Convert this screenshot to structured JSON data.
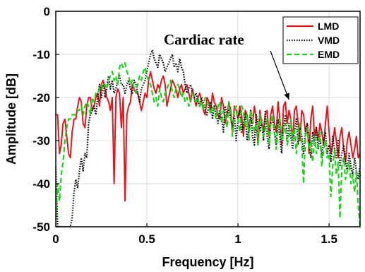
{
  "chart_data": {
    "type": "line",
    "xlabel": "Frequency [Hz]",
    "ylabel": "Amplitude [dB]",
    "xlim": [
      0,
      1.67
    ],
    "ylim": [
      -50,
      0
    ],
    "xticks": [
      {
        "value": 0,
        "label": "0"
      },
      {
        "value": 0.5,
        "label": "0.5"
      },
      {
        "value": 1,
        "label": "1"
      },
      {
        "value": 1.5,
        "label": "1.5"
      }
    ],
    "yticks": [
      {
        "value": 0,
        "label": "0"
      },
      {
        "value": -10,
        "label": "-10"
      },
      {
        "value": -20,
        "label": "-20"
      },
      {
        "value": -30,
        "label": "-30"
      },
      {
        "value": -40,
        "label": "-40"
      },
      {
        "value": -50,
        "label": "-50"
      }
    ],
    "grid": true,
    "legend_position": "top-right",
    "annotation": {
      "text": "Cardiac rate",
      "x": 1.28,
      "y": -20.5
    },
    "series": [
      {
        "name": "LMD",
        "color": "#e8141c",
        "dash": "solid",
        "x": [
          0,
          0.01,
          0.02,
          0.03,
          0.04,
          0.05,
          0.06,
          0.07,
          0.08,
          0.09,
          0.1,
          0.11,
          0.12,
          0.13,
          0.14,
          0.15,
          0.16,
          0.17,
          0.18,
          0.19,
          0.2,
          0.21,
          0.22,
          0.23,
          0.24,
          0.25,
          0.26,
          0.27,
          0.28,
          0.29,
          0.3,
          0.31,
          0.32,
          0.33,
          0.34,
          0.35,
          0.36,
          0.37,
          0.38,
          0.39,
          0.4,
          0.41,
          0.42,
          0.43,
          0.44,
          0.45,
          0.46,
          0.47,
          0.48,
          0.49,
          0.5,
          0.51,
          0.52,
          0.53,
          0.54,
          0.55,
          0.56,
          0.57,
          0.58,
          0.59,
          0.6,
          0.61,
          0.62,
          0.63,
          0.64,
          0.65,
          0.66,
          0.67,
          0.68,
          0.69,
          0.7,
          0.71,
          0.72,
          0.73,
          0.74,
          0.75,
          0.76,
          0.77,
          0.78,
          0.79,
          0.8,
          0.81,
          0.82,
          0.83,
          0.84,
          0.85,
          0.86,
          0.87,
          0.88,
          0.89,
          0.9,
          0.91,
          0.92,
          0.93,
          0.94,
          0.95,
          0.96,
          0.97,
          0.98,
          0.99,
          1.0,
          1.01,
          1.02,
          1.03,
          1.04,
          1.05,
          1.06,
          1.07,
          1.08,
          1.09,
          1.1,
          1.11,
          1.12,
          1.13,
          1.14,
          1.15,
          1.16,
          1.17,
          1.18,
          1.19,
          1.2,
          1.21,
          1.22,
          1.23,
          1.24,
          1.25,
          1.26,
          1.27,
          1.28,
          1.29,
          1.3,
          1.31,
          1.32,
          1.33,
          1.34,
          1.35,
          1.36,
          1.37,
          1.38,
          1.39,
          1.4,
          1.41,
          1.42,
          1.43,
          1.44,
          1.45,
          1.46,
          1.47,
          1.48,
          1.49,
          1.5,
          1.51,
          1.52,
          1.53,
          1.54,
          1.55,
          1.56,
          1.57,
          1.58,
          1.59,
          1.6,
          1.61,
          1.62,
          1.63,
          1.64,
          1.65,
          1.66,
          1.67
        ],
        "y": [
          -24,
          -24,
          -33,
          -31,
          -26,
          -25,
          -29,
          -33,
          -34,
          -28,
          -25,
          -25,
          -22,
          -20,
          -21,
          -26,
          -27,
          -22,
          -20,
          -20,
          -23,
          -22,
          -20,
          -19,
          -22,
          -17,
          -16,
          -18,
          -20,
          -21,
          -23,
          -20,
          -40,
          -20,
          -18,
          -19,
          -27,
          -20,
          -44,
          -24,
          -22,
          -21,
          -17,
          -18,
          -19,
          -19,
          -21,
          -23,
          -21,
          -19,
          -20,
          -16,
          -14,
          -16,
          -18,
          -19,
          -17,
          -18,
          -16,
          -15,
          -17,
          -22,
          -20,
          -18,
          -16,
          -17,
          -18,
          -20,
          -18,
          -17,
          -19,
          -18,
          -17,
          -19,
          -21,
          -18,
          -20,
          -22,
          -20,
          -19,
          -21,
          -23,
          -24,
          -20,
          -21,
          -23,
          -19,
          -21,
          -22,
          -24,
          -25,
          -20,
          -22,
          -26,
          -24,
          -21,
          -23,
          -28,
          -22,
          -23,
          -25,
          -22,
          -24,
          -29,
          -23,
          -24,
          -28,
          -25,
          -26,
          -22,
          -25,
          -31,
          -23,
          -26,
          -28,
          -24,
          -23,
          -29,
          -24,
          -22,
          -26,
          -28,
          -21,
          -25,
          -31,
          -22,
          -21,
          -26,
          -23,
          -25,
          -30,
          -23,
          -22,
          -26,
          -30,
          -23,
          -24,
          -28,
          -26,
          -33,
          -25,
          -22,
          -29,
          -27,
          -30,
          -26,
          -28,
          -31,
          -26,
          -22,
          -28,
          -33,
          -31,
          -27,
          -30,
          -34,
          -29,
          -27,
          -32,
          -35,
          -30,
          -28,
          -31,
          -34,
          -32,
          -29,
          -34,
          -33
        ]
      },
      {
        "name": "VMD",
        "color": "#000000",
        "dash": "dotted",
        "x": [
          0,
          0.01,
          0.02,
          0.03,
          0.04,
          0.05,
          0.06,
          0.07,
          0.08,
          0.09,
          0.1,
          0.11,
          0.12,
          0.13,
          0.14,
          0.15,
          0.16,
          0.17,
          0.18,
          0.19,
          0.2,
          0.21,
          0.22,
          0.23,
          0.24,
          0.25,
          0.26,
          0.27,
          0.28,
          0.29,
          0.3,
          0.31,
          0.32,
          0.33,
          0.34,
          0.35,
          0.36,
          0.37,
          0.38,
          0.39,
          0.4,
          0.41,
          0.42,
          0.43,
          0.44,
          0.45,
          0.46,
          0.47,
          0.48,
          0.49,
          0.5,
          0.51,
          0.52,
          0.53,
          0.54,
          0.55,
          0.56,
          0.57,
          0.58,
          0.59,
          0.6,
          0.61,
          0.62,
          0.63,
          0.64,
          0.65,
          0.66,
          0.67,
          0.68,
          0.69,
          0.7,
          0.71,
          0.72,
          0.73,
          0.74,
          0.75,
          0.76,
          0.77,
          0.78,
          0.79,
          0.8,
          0.81,
          0.82,
          0.83,
          0.84,
          0.85,
          0.86,
          0.87,
          0.88,
          0.89,
          0.9,
          0.91,
          0.92,
          0.93,
          0.94,
          0.95,
          0.96,
          0.97,
          0.98,
          0.99,
          1.0,
          1.01,
          1.02,
          1.03,
          1.04,
          1.05,
          1.06,
          1.07,
          1.08,
          1.09,
          1.1,
          1.11,
          1.12,
          1.13,
          1.14,
          1.15,
          1.16,
          1.17,
          1.18,
          1.19,
          1.2,
          1.21,
          1.22,
          1.23,
          1.24,
          1.25,
          1.26,
          1.27,
          1.28,
          1.29,
          1.3,
          1.31,
          1.32,
          1.33,
          1.34,
          1.35,
          1.36,
          1.37,
          1.38,
          1.39,
          1.4,
          1.41,
          1.42,
          1.43,
          1.44,
          1.45,
          1.46,
          1.47,
          1.48,
          1.49,
          1.5,
          1.51,
          1.52,
          1.53,
          1.54,
          1.55,
          1.56,
          1.57,
          1.58,
          1.59,
          1.6,
          1.61,
          1.62,
          1.63,
          1.64,
          1.65,
          1.66,
          1.67
        ],
        "y": [
          -36,
          -50,
          -50,
          -50,
          -50,
          -50,
          -50,
          -50,
          -50,
          -48,
          -42,
          -39,
          -41,
          -37,
          -34,
          -37,
          -33,
          -34,
          -26,
          -24,
          -23,
          -22,
          -24,
          -20,
          -17,
          -20,
          -17,
          -20,
          -18,
          -15,
          -18,
          -16,
          -19,
          -18,
          -16,
          -15,
          -17,
          -17,
          -19,
          -17,
          -16,
          -18,
          -19,
          -16,
          -17,
          -19,
          -21,
          -18,
          -17,
          -16,
          -14,
          -12,
          -10,
          -9,
          -11,
          -12,
          -13,
          -10,
          -11,
          -12,
          -14,
          -13,
          -12,
          -11,
          -10,
          -13,
          -12,
          -14,
          -11,
          -13,
          -14,
          -17,
          -19,
          -18,
          -17,
          -19,
          -20,
          -19,
          -21,
          -22,
          -20,
          -21,
          -23,
          -24,
          -22,
          -21,
          -25,
          -22,
          -24,
          -26,
          -23,
          -25,
          -28,
          -22,
          -24,
          -23,
          -25,
          -27,
          -24,
          -30,
          -25,
          -23,
          -28,
          -26,
          -24,
          -30,
          -27,
          -23,
          -29,
          -31,
          -24,
          -26,
          -28,
          -25,
          -30,
          -23,
          -29,
          -32,
          -26,
          -25,
          -28,
          -31,
          -25,
          -29,
          -33,
          -27,
          -24,
          -30,
          -26,
          -29,
          -32,
          -28,
          -25,
          -31,
          -27,
          -29,
          -33,
          -28,
          -26,
          -30,
          -34,
          -28,
          -31,
          -27,
          -32,
          -29,
          -34,
          -30,
          -28,
          -33,
          -31,
          -35,
          -29,
          -32,
          -34,
          -30,
          -36,
          -33,
          -31,
          -35,
          -37,
          -33,
          -36,
          -38,
          -34,
          -37,
          -39,
          -36
        ]
      },
      {
        "name": "EMD",
        "color": "#19d419",
        "dash": "dashed",
        "x": [
          0,
          0.01,
          0.02,
          0.03,
          0.04,
          0.05,
          0.06,
          0.07,
          0.08,
          0.09,
          0.1,
          0.11,
          0.12,
          0.13,
          0.14,
          0.15,
          0.16,
          0.17,
          0.18,
          0.19,
          0.2,
          0.21,
          0.22,
          0.23,
          0.24,
          0.25,
          0.26,
          0.27,
          0.28,
          0.29,
          0.3,
          0.31,
          0.32,
          0.33,
          0.34,
          0.35,
          0.36,
          0.37,
          0.38,
          0.39,
          0.4,
          0.41,
          0.42,
          0.43,
          0.44,
          0.45,
          0.46,
          0.47,
          0.48,
          0.49,
          0.5,
          0.51,
          0.52,
          0.53,
          0.54,
          0.55,
          0.56,
          0.57,
          0.58,
          0.59,
          0.6,
          0.61,
          0.62,
          0.63,
          0.64,
          0.65,
          0.66,
          0.67,
          0.68,
          0.69,
          0.7,
          0.71,
          0.72,
          0.73,
          0.74,
          0.75,
          0.76,
          0.77,
          0.78,
          0.79,
          0.8,
          0.81,
          0.82,
          0.83,
          0.84,
          0.85,
          0.86,
          0.87,
          0.88,
          0.89,
          0.9,
          0.91,
          0.92,
          0.93,
          0.94,
          0.95,
          0.96,
          0.97,
          0.98,
          0.99,
          1.0,
          1.01,
          1.02,
          1.03,
          1.04,
          1.05,
          1.06,
          1.07,
          1.08,
          1.09,
          1.1,
          1.11,
          1.12,
          1.13,
          1.14,
          1.15,
          1.16,
          1.17,
          1.18,
          1.19,
          1.2,
          1.21,
          1.22,
          1.23,
          1.24,
          1.25,
          1.26,
          1.27,
          1.28,
          1.29,
          1.3,
          1.31,
          1.32,
          1.33,
          1.34,
          1.35,
          1.36,
          1.37,
          1.38,
          1.39,
          1.4,
          1.41,
          1.42,
          1.43,
          1.44,
          1.45,
          1.46,
          1.47,
          1.48,
          1.49,
          1.5,
          1.51,
          1.52,
          1.53,
          1.54,
          1.55,
          1.56,
          1.57,
          1.58,
          1.59,
          1.6,
          1.61,
          1.62,
          1.63,
          1.64,
          1.65,
          1.66,
          1.67
        ],
        "y": [
          -48,
          -40,
          -44,
          -38,
          -35,
          -30,
          -27,
          -25,
          -25,
          -24,
          -24,
          -24,
          -23,
          -23,
          -22,
          -24,
          -22,
          -21,
          -22,
          -24,
          -20,
          -21,
          -19,
          -19,
          -18,
          -17,
          -18,
          -17,
          -18,
          -16,
          -15,
          -14,
          -16,
          -15,
          -17,
          -13,
          -12,
          -13,
          -12,
          -14,
          -15,
          -17,
          -16,
          -18,
          -19,
          -17,
          -15,
          -16,
          -14,
          -13,
          -15,
          -16,
          -17,
          -19,
          -21,
          -20,
          -22,
          -18,
          -20,
          -21,
          -19,
          -18,
          -17,
          -16,
          -19,
          -20,
          -18,
          -17,
          -18,
          -20,
          -19,
          -21,
          -20,
          -22,
          -21,
          -19,
          -20,
          -21,
          -20,
          -22,
          -21,
          -23,
          -20,
          -21,
          -22,
          -24,
          -22,
          -23,
          -25,
          -22,
          -21,
          -26,
          -23,
          -24,
          -27,
          -21,
          -24,
          -29,
          -23,
          -22,
          -25,
          -28,
          -22,
          -23,
          -27,
          -24,
          -30,
          -23,
          -25,
          -28,
          -26,
          -31,
          -24,
          -26,
          -29,
          -27,
          -25,
          -31,
          -26,
          -24,
          -28,
          -32,
          -27,
          -25,
          -30,
          -28,
          -26,
          -31,
          -29,
          -25,
          -30,
          -27,
          -33,
          -28,
          -26,
          -31,
          -40,
          -29,
          -27,
          -32,
          -30,
          -35,
          -29,
          -33,
          -31,
          -28,
          -36,
          -32,
          -30,
          -34,
          -33,
          -43,
          -36,
          -32,
          -38,
          -35,
          -48,
          -36,
          -34,
          -39,
          -37,
          -35,
          -40,
          -38,
          -42,
          -37,
          -45,
          -50
        ]
      }
    ]
  }
}
